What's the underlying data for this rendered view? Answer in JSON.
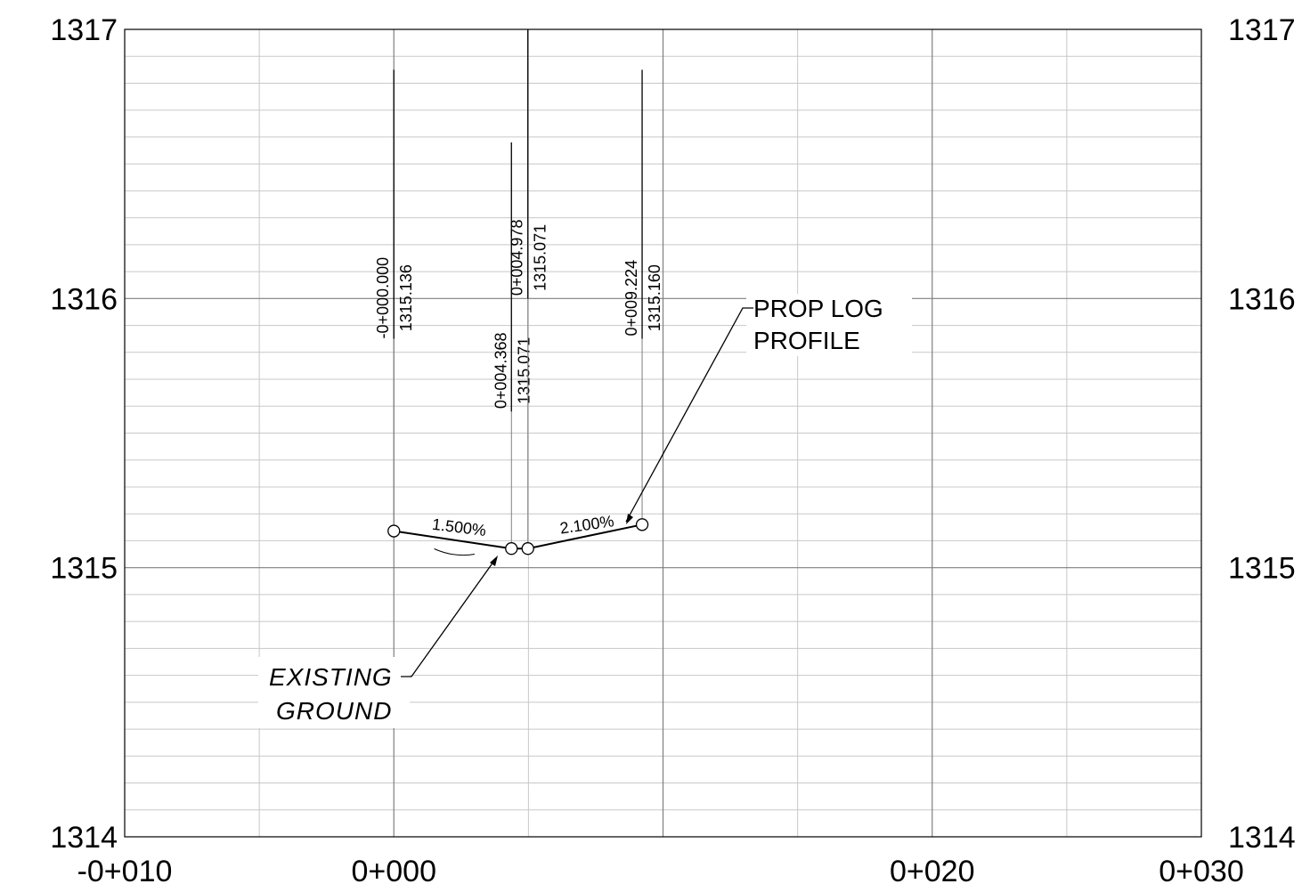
{
  "chart_data": {
    "type": "profile",
    "x_axis": {
      "range": [
        -10,
        30
      ],
      "tick_labels": [
        {
          "value": -10,
          "label": "-0+010"
        },
        {
          "value": 0,
          "label": "0+000"
        },
        {
          "value": 20,
          "label": "0+020"
        },
        {
          "value": 30,
          "label": "0+030"
        }
      ],
      "major_grid_every": 5
    },
    "y_axis": {
      "range": [
        1314,
        1317
      ],
      "tick_labels": [
        {
          "value": 1314,
          "label": "1314"
        },
        {
          "value": 1315,
          "label": "1315"
        },
        {
          "value": 1316,
          "label": "1316"
        },
        {
          "value": 1317,
          "label": "1317"
        }
      ],
      "minor_grid_every": 0.1,
      "labels_on_both_sides": true
    },
    "grid": true,
    "series": [
      {
        "style": "polyline",
        "points": [
          {
            "x": 0,
            "y": 1315.136
          },
          {
            "x": 4.368,
            "y": 1315.071
          },
          {
            "x": 4.978,
            "y": 1315.071
          },
          {
            "x": 9.224,
            "y": 1315.16
          }
        ]
      }
    ],
    "existing_ground": {
      "points": [
        {
          "x": 1.5,
          "y": 1315.07
        },
        {
          "x": 3.0,
          "y": 1315.05
        }
      ]
    },
    "vertical_labels": [
      {
        "station": "-0+000.000",
        "elevation": "1315.136",
        "x": 0,
        "y_top": 1316.85,
        "y_bottom": 1315.85
      },
      {
        "station": "0+004.368",
        "elevation": "1315.071",
        "x": 4.368,
        "y_top": 1316.58,
        "y_bottom": 1315.58
      },
      {
        "station": "0+004.978",
        "elevation": "1315.071",
        "x": 4.978,
        "y_top": 1317.0,
        "y_bottom": 1316.0
      },
      {
        "station": "0+009.224",
        "elevation": "1315.160",
        "x": 9.224,
        "y_top": 1316.85,
        "y_bottom": 1315.85
      }
    ],
    "slopes": [
      {
        "label": "1.500%",
        "x": 2.4,
        "y": 1315.13
      },
      {
        "label": "2.100%",
        "x": 7.2,
        "y": 1315.14
      }
    ],
    "callouts": [
      {
        "lines": [
          "PROP LOG",
          "PROFILE"
        ],
        "style": "normal"
      },
      {
        "lines": [
          "EXISTING",
          "GROUND"
        ],
        "style": "italic"
      }
    ]
  },
  "colors": {
    "background": "#ffffff",
    "line": "#000000",
    "major_grid": "#7f7f7f",
    "minor_grid": "#c8c8c8"
  }
}
